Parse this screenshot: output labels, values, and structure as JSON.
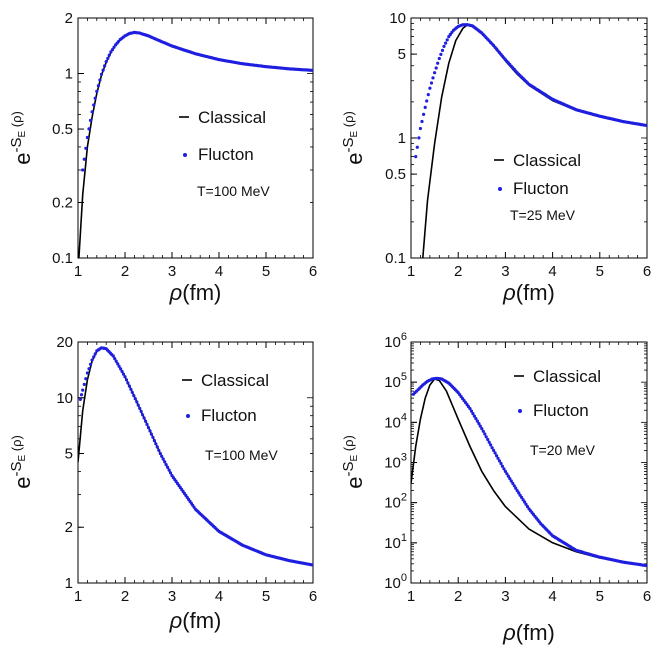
{
  "chart_data": [
    {
      "type": "line",
      "panel": "top-left",
      "ylabel": "e^{-S_E(ρ)}",
      "xlabel": "ρ(fm)",
      "yscale": "log",
      "xlim": [
        1,
        6
      ],
      "ylim": [
        0.1,
        2
      ],
      "xticks": [
        "1",
        "2",
        "3",
        "4",
        "5",
        "6"
      ],
      "yticks": [
        {
          "value": 0.1,
          "label": "0.1"
        },
        {
          "value": 0.2,
          "label": "0.2"
        },
        {
          "value": 0.5,
          "label": "0.5"
        },
        {
          "value": 1,
          "label": "1"
        },
        {
          "value": 2,
          "label": "2"
        }
      ],
      "legend_position": "center-right",
      "annotation": "T=100 MeV",
      "series": [
        {
          "name": "Classical",
          "style": "line",
          "color": "#000000",
          "points": [
            [
              1.02,
              0.1
            ],
            [
              1.1,
              0.22
            ],
            [
              1.2,
              0.4
            ],
            [
              1.3,
              0.58
            ],
            [
              1.4,
              0.78
            ],
            [
              1.5,
              0.98
            ],
            [
              1.6,
              1.15
            ],
            [
              1.7,
              1.3
            ],
            [
              1.8,
              1.43
            ],
            [
              1.9,
              1.53
            ],
            [
              2.0,
              1.6
            ],
            [
              2.1,
              1.65
            ],
            [
              2.2,
              1.67
            ],
            [
              2.3,
              1.66
            ],
            [
              2.5,
              1.6
            ],
            [
              2.75,
              1.5
            ],
            [
              3.0,
              1.41
            ],
            [
              3.5,
              1.28
            ],
            [
              4.0,
              1.19
            ],
            [
              4.5,
              1.13
            ],
            [
              5.0,
              1.09
            ],
            [
              5.5,
              1.06
            ],
            [
              6.0,
              1.04
            ]
          ]
        },
        {
          "name": "Flucton",
          "style": "dots",
          "color": "#1f1fe0",
          "points": [
            [
              1.1,
              0.3
            ],
            [
              1.2,
              0.45
            ],
            [
              1.3,
              0.62
            ],
            [
              1.4,
              0.8
            ],
            [
              1.5,
              0.99
            ],
            [
              1.6,
              1.16
            ],
            [
              1.7,
              1.31
            ],
            [
              1.8,
              1.43
            ],
            [
              1.9,
              1.53
            ],
            [
              2.0,
              1.6
            ],
            [
              2.1,
              1.65
            ],
            [
              2.2,
              1.67
            ],
            [
              2.3,
              1.66
            ],
            [
              2.5,
              1.6
            ],
            [
              2.75,
              1.5
            ],
            [
              3.0,
              1.41
            ],
            [
              3.5,
              1.28
            ],
            [
              4.0,
              1.19
            ],
            [
              4.5,
              1.13
            ],
            [
              5.0,
              1.09
            ],
            [
              5.5,
              1.06
            ],
            [
              6.0,
              1.04
            ]
          ]
        }
      ]
    },
    {
      "type": "line",
      "panel": "top-right",
      "ylabel": "e^{-S_E(ρ)}",
      "xlabel": "ρ(fm)",
      "yscale": "log",
      "xlim": [
        1,
        6
      ],
      "ylim": [
        0.1,
        10
      ],
      "xticks": [
        "1",
        "2",
        "3",
        "4",
        "5",
        "6"
      ],
      "yticks": [
        {
          "value": 0.1,
          "label": "0.1"
        },
        {
          "value": 0.5,
          "label": "0.5"
        },
        {
          "value": 1,
          "label": "1"
        },
        {
          "value": 5,
          "label": "5"
        },
        {
          "value": 10,
          "label": "10"
        }
      ],
      "legend_position": "center-right",
      "annotation": "T=25 MeV",
      "series": [
        {
          "name": "Classical",
          "style": "line",
          "color": "#000000",
          "points": [
            [
              1.25,
              0.1
            ],
            [
              1.35,
              0.3
            ],
            [
              1.5,
              0.9
            ],
            [
              1.65,
              2.2
            ],
            [
              1.8,
              4.2
            ],
            [
              1.95,
              6.5
            ],
            [
              2.1,
              8.2
            ],
            [
              2.2,
              8.8
            ],
            [
              2.3,
              8.7
            ],
            [
              2.5,
              7.6
            ],
            [
              2.75,
              5.8
            ],
            [
              3.0,
              4.4
            ],
            [
              3.25,
              3.4
            ],
            [
              3.5,
              2.75
            ],
            [
              4.0,
              2.05
            ],
            [
              4.5,
              1.7
            ],
            [
              5.0,
              1.5
            ],
            [
              5.5,
              1.36
            ],
            [
              6.0,
              1.27
            ]
          ]
        },
        {
          "name": "Flucton",
          "style": "dots",
          "color": "#1f1fe0",
          "points": [
            [
              1.1,
              0.7
            ],
            [
              1.2,
              1.2
            ],
            [
              1.3,
              1.8
            ],
            [
              1.4,
              2.6
            ],
            [
              1.5,
              3.5
            ],
            [
              1.6,
              4.6
            ],
            [
              1.7,
              5.8
            ],
            [
              1.8,
              7.0
            ],
            [
              1.9,
              7.9
            ],
            [
              2.0,
              8.5
            ],
            [
              2.1,
              8.8
            ],
            [
              2.2,
              8.8
            ],
            [
              2.3,
              8.6
            ],
            [
              2.5,
              7.5
            ],
            [
              2.75,
              5.9
            ],
            [
              3.0,
              4.5
            ],
            [
              3.25,
              3.5
            ],
            [
              3.5,
              2.8
            ],
            [
              4.0,
              2.1
            ],
            [
              4.5,
              1.72
            ],
            [
              5.0,
              1.52
            ],
            [
              5.5,
              1.37
            ],
            [
              6.0,
              1.27
            ]
          ]
        }
      ]
    },
    {
      "type": "line",
      "panel": "bottom-left",
      "ylabel": "e^{-S_E(ρ)}",
      "xlabel": "ρ(fm)",
      "yscale": "log",
      "xlim": [
        1,
        6
      ],
      "ylim": [
        1,
        20
      ],
      "xticks": [
        "1",
        "2",
        "3",
        "4",
        "5",
        "6"
      ],
      "yticks": [
        {
          "value": 1,
          "label": "1"
        },
        {
          "value": 2,
          "label": "2"
        },
        {
          "value": 5,
          "label": "5"
        },
        {
          "value": 10,
          "label": "10"
        },
        {
          "value": 20,
          "label": "20"
        }
      ],
      "legend_position": "center-right",
      "annotation": "T=100 MeV",
      "series": [
        {
          "name": "Classical",
          "style": "line",
          "color": "#000000",
          "points": [
            [
              1.0,
              4.5
            ],
            [
              1.1,
              8.5
            ],
            [
              1.2,
              12.5
            ],
            [
              1.3,
              15.8
            ],
            [
              1.4,
              17.8
            ],
            [
              1.5,
              18.6
            ],
            [
              1.6,
              18.4
            ],
            [
              1.75,
              16.8
            ],
            [
              2.0,
              13.0
            ],
            [
              2.25,
              9.5
            ],
            [
              2.5,
              6.9
            ],
            [
              2.75,
              5.0
            ],
            [
              3.0,
              3.8
            ],
            [
              3.5,
              2.5
            ],
            [
              4.0,
              1.9
            ],
            [
              4.5,
              1.6
            ],
            [
              5.0,
              1.42
            ],
            [
              5.5,
              1.32
            ],
            [
              6.0,
              1.25
            ]
          ]
        },
        {
          "name": "Flucton",
          "style": "dots",
          "color": "#1f1fe0",
          "points": [
            [
              1.05,
              9.8
            ],
            [
              1.1,
              11.0
            ],
            [
              1.2,
              13.6
            ],
            [
              1.3,
              16.0
            ],
            [
              1.4,
              17.9
            ],
            [
              1.5,
              18.6
            ],
            [
              1.6,
              18.4
            ],
            [
              1.75,
              16.8
            ],
            [
              2.0,
              13.0
            ],
            [
              2.25,
              9.5
            ],
            [
              2.5,
              6.9
            ],
            [
              2.75,
              5.0
            ],
            [
              3.0,
              3.8
            ],
            [
              3.5,
              2.5
            ],
            [
              4.0,
              1.9
            ],
            [
              4.5,
              1.6
            ],
            [
              5.0,
              1.42
            ],
            [
              5.5,
              1.32
            ],
            [
              6.0,
              1.25
            ]
          ]
        }
      ]
    },
    {
      "type": "line",
      "panel": "bottom-right",
      "ylabel": "e^{-S_E(ρ)}",
      "xlabel": "ρ(fm)",
      "yscale": "log",
      "xlim": [
        1,
        6
      ],
      "ylim": [
        1,
        1000000
      ],
      "xticks": [
        "1",
        "2",
        "3",
        "4",
        "5",
        "6"
      ],
      "yticks": [
        {
          "value": 1,
          "base": "10",
          "exp": "0"
        },
        {
          "value": 10,
          "base": "10",
          "exp": "1"
        },
        {
          "value": 100,
          "base": "10",
          "exp": "2"
        },
        {
          "value": 1000,
          "base": "10",
          "exp": "3"
        },
        {
          "value": 10000,
          "base": "10",
          "exp": "4"
        },
        {
          "value": 100000,
          "base": "10",
          "exp": "5"
        },
        {
          "value": 1000000,
          "base": "10",
          "exp": "6"
        }
      ],
      "legend_position": "center-right",
      "annotation": "T=20 MeV",
      "series": [
        {
          "name": "Classical",
          "style": "line",
          "color": "#000000",
          "points": [
            [
              1.0,
              300
            ],
            [
              1.1,
              2500
            ],
            [
              1.2,
              12000
            ],
            [
              1.3,
              40000
            ],
            [
              1.4,
              85000
            ],
            [
              1.5,
              120000
            ],
            [
              1.6,
              110000
            ],
            [
              1.75,
              60000
            ],
            [
              2.0,
              12000
            ],
            [
              2.25,
              2500
            ],
            [
              2.5,
              600
            ],
            [
              2.75,
              200
            ],
            [
              3.0,
              80
            ],
            [
              3.5,
              22
            ],
            [
              4.0,
              10
            ],
            [
              4.5,
              6
            ],
            [
              5.0,
              4.2
            ],
            [
              5.5,
              3.3
            ],
            [
              6.0,
              2.7
            ]
          ]
        },
        {
          "name": "Flucton",
          "style": "dots",
          "color": "#1f1fe0",
          "points": [
            [
              1.05,
              50000
            ],
            [
              1.15,
              65000
            ],
            [
              1.25,
              85000
            ],
            [
              1.35,
              105000
            ],
            [
              1.45,
              120000
            ],
            [
              1.55,
              125000
            ],
            [
              1.65,
              120000
            ],
            [
              1.8,
              95000
            ],
            [
              2.0,
              55000
            ],
            [
              2.25,
              22000
            ],
            [
              2.5,
              7000
            ],
            [
              2.75,
              2000
            ],
            [
              3.0,
              600
            ],
            [
              3.25,
              200
            ],
            [
              3.5,
              70
            ],
            [
              3.75,
              30
            ],
            [
              4.0,
              15
            ],
            [
              4.5,
              6.5
            ],
            [
              5.0,
              4.4
            ],
            [
              5.5,
              3.3
            ],
            [
              6.0,
              2.7
            ]
          ]
        }
      ]
    }
  ]
}
